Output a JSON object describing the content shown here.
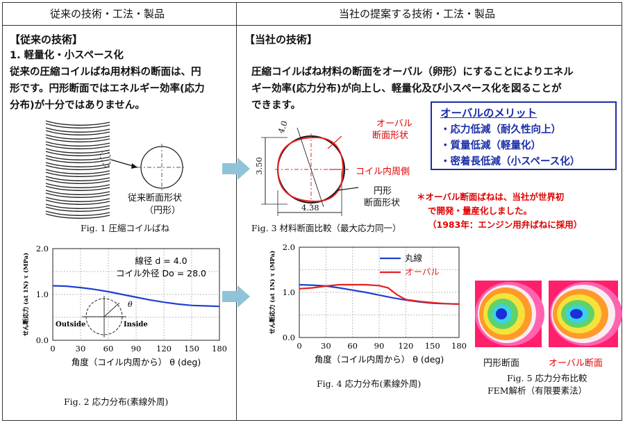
{
  "header": {
    "left": "従来の技術・工法・製品",
    "right": "当社の提案する技術・工法・製品"
  },
  "left": {
    "section": "【従来の技術】",
    "subhead": "1. 軽量化・小スペース化",
    "body": [
      "従来の圧縮コイルばね用材料の断面は、円",
      "形です。円形断面ではエネルギー効率(応力",
      "分布)が十分ではありません。"
    ],
    "section_label": [
      "従来断面形状",
      "（円形）"
    ],
    "fig1": "Fig. 1  圧縮コイルばね",
    "fig2": "Fig. 2  応力分布(素線外周)"
  },
  "right": {
    "section": "【当社の技術】",
    "body": [
      "圧縮コイルばね材料の断面をオーバル（卵形）にすることによりエネル",
      "ギー効率(応力分布)が向上し、軽量化及び小スペース化を図ることが",
      "できます。"
    ],
    "oval_label": [
      "オーバル",
      "断面形状"
    ],
    "inner_label": "コイル内周側",
    "round_label": [
      "円形",
      "断面形状"
    ],
    "dim_d": "4.0",
    "dim_h": "3.50",
    "dim_w": "4.38",
    "fig3": "Fig. 3  材料断面比較（最大応力同一）",
    "fig4": "Fig. 4  応力分布(素線外周)",
    "fig5_labels": [
      "円形断面",
      "オーバル断面"
    ],
    "fig5": [
      "Fig. 5  応力分布比較",
      "FEM解析（有限要素法）"
    ]
  },
  "merit": {
    "title": "オーバルのメリット",
    "items": [
      "・応力低減（耐久性向上）",
      "・質量低減（軽量化）",
      "・密着長低減（小スペース化）"
    ]
  },
  "note": [
    "＊オーバル断面ばねは、当社が世界初",
    "で開発・量産化しました。",
    "（1983年：エンジン用弁ばねに採用）"
  ],
  "colors": {
    "round": "#1f3fcf",
    "oval": "#e52020",
    "arrow": "#8fc4d8",
    "merit": "#1a2ea8"
  },
  "chart_data": [
    {
      "type": "line",
      "ylabel": "せん断応力 (at 1N) τ (MPa)",
      "xlabel": "角度（コイル内周から） θ (deg)",
      "xlim": [
        0,
        180
      ],
      "ylim": [
        0,
        2
      ],
      "xticks": [
        0,
        30,
        60,
        90,
        120,
        150,
        180
      ],
      "yticks": [
        "0.0",
        "1.0",
        "2.0"
      ],
      "annot": [
        "線径  d = 4.0",
        "コイル外径  Do = 28.0"
      ],
      "inset": [
        "Outside",
        "Inside",
        "θ"
      ],
      "series": [
        {
          "color": "#1f3fcf",
          "x": [
            0,
            15,
            30,
            45,
            60,
            75,
            90,
            105,
            120,
            135,
            150,
            165,
            180
          ],
          "y": [
            1.19,
            1.18,
            1.15,
            1.11,
            1.06,
            1.0,
            0.94,
            0.88,
            0.83,
            0.79,
            0.76,
            0.75,
            0.74
          ]
        }
      ]
    },
    {
      "type": "line",
      "ylabel": "せん断応力 (at 1N) τ (MPa)",
      "xlabel": "角度（コイル内周から） θ (deg)",
      "xlim": [
        0,
        180
      ],
      "ylim": [
        0,
        2
      ],
      "xticks": [
        0,
        30,
        60,
        90,
        120,
        150,
        180
      ],
      "yticks": [
        "0.0",
        "1.0",
        "2.0"
      ],
      "series": [
        {
          "name": "丸線",
          "color": "#1f3fcf",
          "x": [
            0,
            15,
            30,
            45,
            60,
            75,
            90,
            105,
            120,
            135,
            150,
            165,
            180
          ],
          "y": [
            1.17,
            1.16,
            1.14,
            1.1,
            1.05,
            1.0,
            0.94,
            0.88,
            0.83,
            0.79,
            0.76,
            0.75,
            0.74
          ]
        },
        {
          "name": "オーバル",
          "color": "#e52020",
          "x": [
            0,
            15,
            30,
            45,
            60,
            75,
            90,
            100,
            110,
            120,
            135,
            150,
            165,
            180
          ],
          "y": [
            1.08,
            1.1,
            1.14,
            1.17,
            1.17,
            1.17,
            1.15,
            1.1,
            0.95,
            0.84,
            0.8,
            0.77,
            0.75,
            0.74
          ]
        }
      ]
    }
  ]
}
